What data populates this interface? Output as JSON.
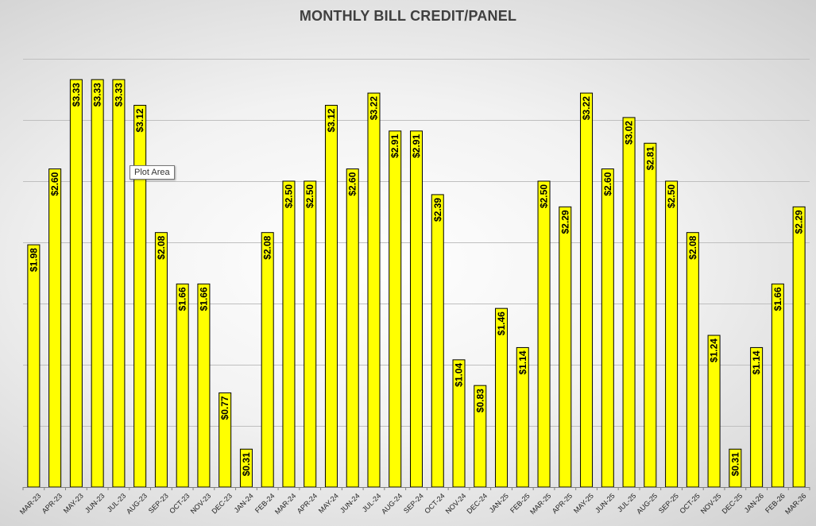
{
  "chart_data": {
    "type": "bar",
    "title": "MONTHLY BILL CREDIT/PANEL",
    "xlabel": "",
    "ylabel": "",
    "ylim": [
      0,
      3.5
    ],
    "grid": true,
    "legend": "none",
    "colors": {
      "bar": "#ffff00",
      "bar_border": "#000000",
      "grid": "#bfbfbf"
    },
    "categories": [
      "MAR-23",
      "APR-23",
      "MAY-23",
      "JUN-23",
      "JUL-23",
      "AUG-23",
      "SEP-23",
      "OCT-23",
      "NOV-23",
      "DEC-23",
      "JAN-24",
      "FEB-24",
      "MAR-24",
      "APR-24",
      "MAY-24",
      "JUN-24",
      "JUL-24",
      "AUG-24",
      "SEP-24",
      "OCT-24",
      "NOV-24",
      "DEC-24",
      "JAN-25",
      "FEB-25",
      "MAR-25",
      "APR-25",
      "MAY-25",
      "JUN-25",
      "JUL-25",
      "AUG-25",
      "SEP-25",
      "OCT-25",
      "NOV-25",
      "DEC-25",
      "JAN-26",
      "FEB-26",
      "MAR-26"
    ],
    "values": [
      1.98,
      2.6,
      3.33,
      3.33,
      3.33,
      3.12,
      2.08,
      1.66,
      1.66,
      0.77,
      0.31,
      2.08,
      2.5,
      2.5,
      3.12,
      2.6,
      3.22,
      2.91,
      2.91,
      2.39,
      1.04,
      0.83,
      1.46,
      1.14,
      2.5,
      2.29,
      3.22,
      2.6,
      3.02,
      2.81,
      2.5,
      2.08,
      1.24,
      0.31,
      1.14,
      1.66,
      2.29
    ],
    "data_labels": [
      "$1.98",
      "$2.60",
      "$3.33",
      "$3.33",
      "$3.33",
      "$3.12",
      "$2.08",
      "$1.66",
      "$1.66",
      "$0.77",
      "$0.31",
      "$2.08",
      "$2.50",
      "$2.50",
      "$3.12",
      "$2.60",
      "$3.22",
      "$2.91",
      "$2.91",
      "$2.39",
      "$1.04",
      "$0.83",
      "$1.46",
      "$1.14",
      "$2.50",
      "$2.29",
      "$3.22",
      "$2.60",
      "$3.02",
      "$2.81",
      "$2.50",
      "$2.08",
      "$1.24",
      "$0.31",
      "$1.14",
      "$1.66",
      "$2.29"
    ]
  },
  "tooltip": {
    "text": "Plot Area"
  }
}
